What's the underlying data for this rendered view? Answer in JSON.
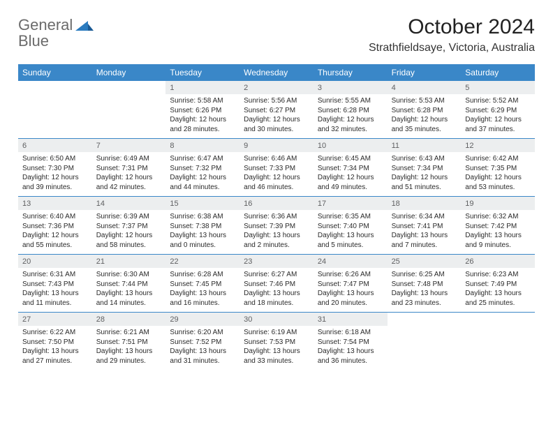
{
  "logo": {
    "line1": "General",
    "line2": "Blue"
  },
  "title": "October 2024",
  "location": "Strathfieldsaye, Victoria, Australia",
  "colors": {
    "header_bg": "#3a87c8",
    "header_text": "#ffffff",
    "daynum_bg": "#eceeef",
    "daynum_text": "#5f6062",
    "rule": "#3a87c8",
    "logo_gray": "#6b6b6b",
    "logo_blue": "#2b7bbf"
  },
  "weekdays": [
    "Sunday",
    "Monday",
    "Tuesday",
    "Wednesday",
    "Thursday",
    "Friday",
    "Saturday"
  ],
  "days": [
    {
      "n": "",
      "empty": true
    },
    {
      "n": "",
      "empty": true
    },
    {
      "n": "1",
      "sunrise": "Sunrise: 5:58 AM",
      "sunset": "Sunset: 6:26 PM",
      "day1": "Daylight: 12 hours",
      "day2": "and 28 minutes."
    },
    {
      "n": "2",
      "sunrise": "Sunrise: 5:56 AM",
      "sunset": "Sunset: 6:27 PM",
      "day1": "Daylight: 12 hours",
      "day2": "and 30 minutes."
    },
    {
      "n": "3",
      "sunrise": "Sunrise: 5:55 AM",
      "sunset": "Sunset: 6:28 PM",
      "day1": "Daylight: 12 hours",
      "day2": "and 32 minutes."
    },
    {
      "n": "4",
      "sunrise": "Sunrise: 5:53 AM",
      "sunset": "Sunset: 6:28 PM",
      "day1": "Daylight: 12 hours",
      "day2": "and 35 minutes."
    },
    {
      "n": "5",
      "sunrise": "Sunrise: 5:52 AM",
      "sunset": "Sunset: 6:29 PM",
      "day1": "Daylight: 12 hours",
      "day2": "and 37 minutes."
    },
    {
      "n": "6",
      "sunrise": "Sunrise: 6:50 AM",
      "sunset": "Sunset: 7:30 PM",
      "day1": "Daylight: 12 hours",
      "day2": "and 39 minutes."
    },
    {
      "n": "7",
      "sunrise": "Sunrise: 6:49 AM",
      "sunset": "Sunset: 7:31 PM",
      "day1": "Daylight: 12 hours",
      "day2": "and 42 minutes."
    },
    {
      "n": "8",
      "sunrise": "Sunrise: 6:47 AM",
      "sunset": "Sunset: 7:32 PM",
      "day1": "Daylight: 12 hours",
      "day2": "and 44 minutes."
    },
    {
      "n": "9",
      "sunrise": "Sunrise: 6:46 AM",
      "sunset": "Sunset: 7:33 PM",
      "day1": "Daylight: 12 hours",
      "day2": "and 46 minutes."
    },
    {
      "n": "10",
      "sunrise": "Sunrise: 6:45 AM",
      "sunset": "Sunset: 7:34 PM",
      "day1": "Daylight: 12 hours",
      "day2": "and 49 minutes."
    },
    {
      "n": "11",
      "sunrise": "Sunrise: 6:43 AM",
      "sunset": "Sunset: 7:34 PM",
      "day1": "Daylight: 12 hours",
      "day2": "and 51 minutes."
    },
    {
      "n": "12",
      "sunrise": "Sunrise: 6:42 AM",
      "sunset": "Sunset: 7:35 PM",
      "day1": "Daylight: 12 hours",
      "day2": "and 53 minutes."
    },
    {
      "n": "13",
      "sunrise": "Sunrise: 6:40 AM",
      "sunset": "Sunset: 7:36 PM",
      "day1": "Daylight: 12 hours",
      "day2": "and 55 minutes."
    },
    {
      "n": "14",
      "sunrise": "Sunrise: 6:39 AM",
      "sunset": "Sunset: 7:37 PM",
      "day1": "Daylight: 12 hours",
      "day2": "and 58 minutes."
    },
    {
      "n": "15",
      "sunrise": "Sunrise: 6:38 AM",
      "sunset": "Sunset: 7:38 PM",
      "day1": "Daylight: 13 hours",
      "day2": "and 0 minutes."
    },
    {
      "n": "16",
      "sunrise": "Sunrise: 6:36 AM",
      "sunset": "Sunset: 7:39 PM",
      "day1": "Daylight: 13 hours",
      "day2": "and 2 minutes."
    },
    {
      "n": "17",
      "sunrise": "Sunrise: 6:35 AM",
      "sunset": "Sunset: 7:40 PM",
      "day1": "Daylight: 13 hours",
      "day2": "and 5 minutes."
    },
    {
      "n": "18",
      "sunrise": "Sunrise: 6:34 AM",
      "sunset": "Sunset: 7:41 PM",
      "day1": "Daylight: 13 hours",
      "day2": "and 7 minutes."
    },
    {
      "n": "19",
      "sunrise": "Sunrise: 6:32 AM",
      "sunset": "Sunset: 7:42 PM",
      "day1": "Daylight: 13 hours",
      "day2": "and 9 minutes."
    },
    {
      "n": "20",
      "sunrise": "Sunrise: 6:31 AM",
      "sunset": "Sunset: 7:43 PM",
      "day1": "Daylight: 13 hours",
      "day2": "and 11 minutes."
    },
    {
      "n": "21",
      "sunrise": "Sunrise: 6:30 AM",
      "sunset": "Sunset: 7:44 PM",
      "day1": "Daylight: 13 hours",
      "day2": "and 14 minutes."
    },
    {
      "n": "22",
      "sunrise": "Sunrise: 6:28 AM",
      "sunset": "Sunset: 7:45 PM",
      "day1": "Daylight: 13 hours",
      "day2": "and 16 minutes."
    },
    {
      "n": "23",
      "sunrise": "Sunrise: 6:27 AM",
      "sunset": "Sunset: 7:46 PM",
      "day1": "Daylight: 13 hours",
      "day2": "and 18 minutes."
    },
    {
      "n": "24",
      "sunrise": "Sunrise: 6:26 AM",
      "sunset": "Sunset: 7:47 PM",
      "day1": "Daylight: 13 hours",
      "day2": "and 20 minutes."
    },
    {
      "n": "25",
      "sunrise": "Sunrise: 6:25 AM",
      "sunset": "Sunset: 7:48 PM",
      "day1": "Daylight: 13 hours",
      "day2": "and 23 minutes."
    },
    {
      "n": "26",
      "sunrise": "Sunrise: 6:23 AM",
      "sunset": "Sunset: 7:49 PM",
      "day1": "Daylight: 13 hours",
      "day2": "and 25 minutes."
    },
    {
      "n": "27",
      "sunrise": "Sunrise: 6:22 AM",
      "sunset": "Sunset: 7:50 PM",
      "day1": "Daylight: 13 hours",
      "day2": "and 27 minutes."
    },
    {
      "n": "28",
      "sunrise": "Sunrise: 6:21 AM",
      "sunset": "Sunset: 7:51 PM",
      "day1": "Daylight: 13 hours",
      "day2": "and 29 minutes."
    },
    {
      "n": "29",
      "sunrise": "Sunrise: 6:20 AM",
      "sunset": "Sunset: 7:52 PM",
      "day1": "Daylight: 13 hours",
      "day2": "and 31 minutes."
    },
    {
      "n": "30",
      "sunrise": "Sunrise: 6:19 AM",
      "sunset": "Sunset: 7:53 PM",
      "day1": "Daylight: 13 hours",
      "day2": "and 33 minutes."
    },
    {
      "n": "31",
      "sunrise": "Sunrise: 6:18 AM",
      "sunset": "Sunset: 7:54 PM",
      "day1": "Daylight: 13 hours",
      "day2": "and 36 minutes."
    },
    {
      "n": "",
      "empty": true
    },
    {
      "n": "",
      "empty": true
    }
  ]
}
